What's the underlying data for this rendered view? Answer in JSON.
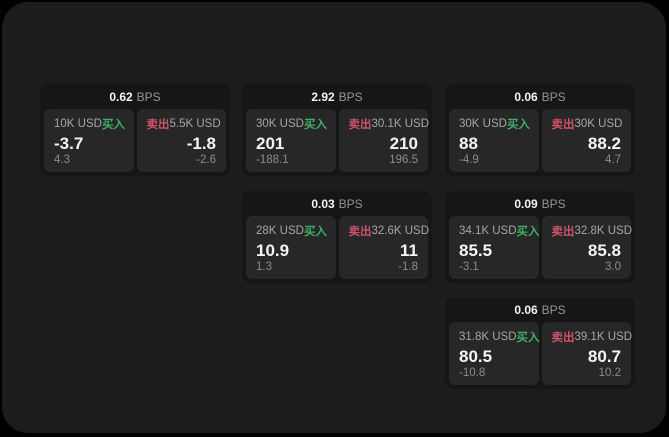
{
  "labels": {
    "bps_unit": "BPS",
    "buy": "买入",
    "sell": "卖出"
  },
  "colors": {
    "buy_accent": "#3fae68",
    "sell_accent": "#cf5268",
    "surface_bg": "#1c1c1d",
    "card_bg": "#161616",
    "tile_bg": "#272727",
    "outer_bg": "#000000"
  },
  "cards": [
    {
      "bps": "0.62",
      "buy": {
        "amount": "10K USD",
        "price": "-3.7",
        "change": "4.3"
      },
      "sell": {
        "amount": "5.5K USD",
        "price": "-1.8",
        "change": "-2.6"
      }
    },
    {
      "bps": "2.92",
      "buy": {
        "amount": "30K USD",
        "price": "201",
        "change": "-188.1"
      },
      "sell": {
        "amount": "30.1K USD",
        "price": "210",
        "change": "196.5"
      }
    },
    {
      "bps": "0.06",
      "buy": {
        "amount": "30K USD",
        "price": "88",
        "change": "-4.9"
      },
      "sell": {
        "amount": "30K USD",
        "price": "88.2",
        "change": "4.7"
      }
    },
    {
      "bps": "0.03",
      "buy": {
        "amount": "28K USD",
        "price": "10.9",
        "change": "1.3"
      },
      "sell": {
        "amount": "32.6K USD",
        "price": "11",
        "change": "-1.8"
      }
    },
    {
      "bps": "0.09",
      "buy": {
        "amount": "34.1K USD",
        "price": "85.5",
        "change": "-3.1"
      },
      "sell": {
        "amount": "32.8K USD",
        "price": "85.8",
        "change": "3.0"
      }
    },
    {
      "bps": "0.06",
      "buy": {
        "amount": "31.8K USD",
        "price": "80.5",
        "change": "-10.8"
      },
      "sell": {
        "amount": "39.1K USD",
        "price": "80.7",
        "change": "10.2"
      }
    }
  ]
}
